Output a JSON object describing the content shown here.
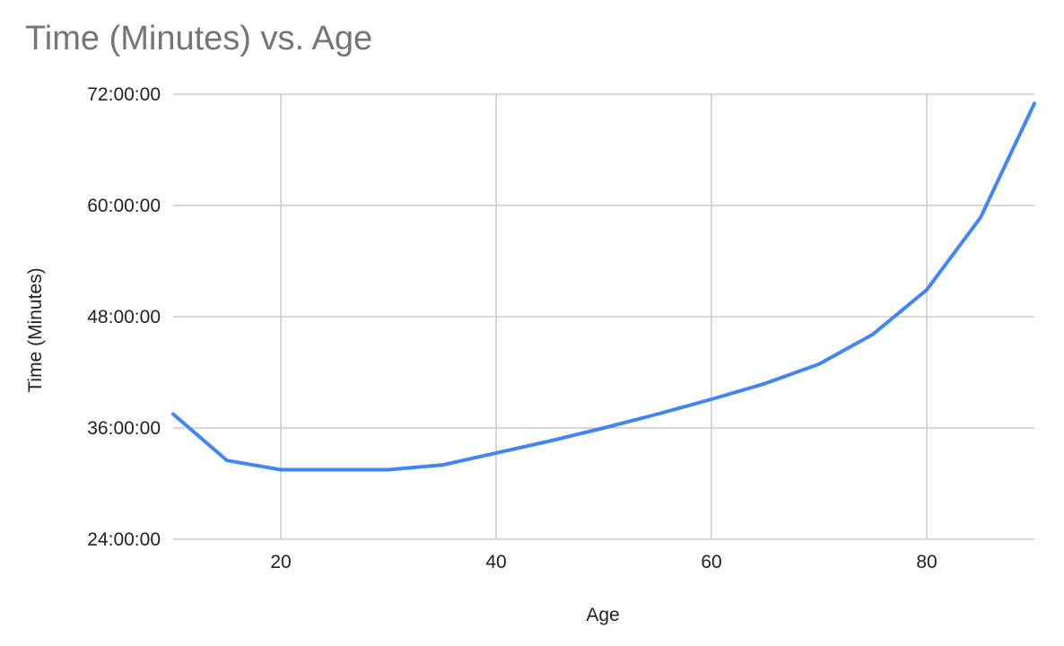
{
  "chart_data": {
    "type": "line",
    "title": "Time (Minutes) vs. Age",
    "xlabel": "Age",
    "ylabel": "Time (Minutes)",
    "xlim": [
      10,
      90
    ],
    "ylim": [
      24,
      72
    ],
    "x_ticks": [
      "20",
      "40",
      "60",
      "80"
    ],
    "y_ticks": [
      "24:00:00",
      "36:00:00",
      "48:00:00",
      "60:00:00",
      "72:00:00"
    ],
    "grid": true,
    "series": [
      {
        "color": "#4285f4",
        "x": [
          10,
          15,
          20,
          25,
          30,
          35,
          40,
          45,
          50,
          55,
          60,
          65,
          70,
          75,
          80,
          85,
          90
        ],
        "y": [
          37.5,
          32.5,
          31.5,
          31.5,
          31.5,
          32,
          33.3,
          34.6,
          36,
          37.5,
          39.1,
          40.8,
          42.9,
          46.1,
          50.9,
          58.7,
          71
        ]
      }
    ]
  }
}
